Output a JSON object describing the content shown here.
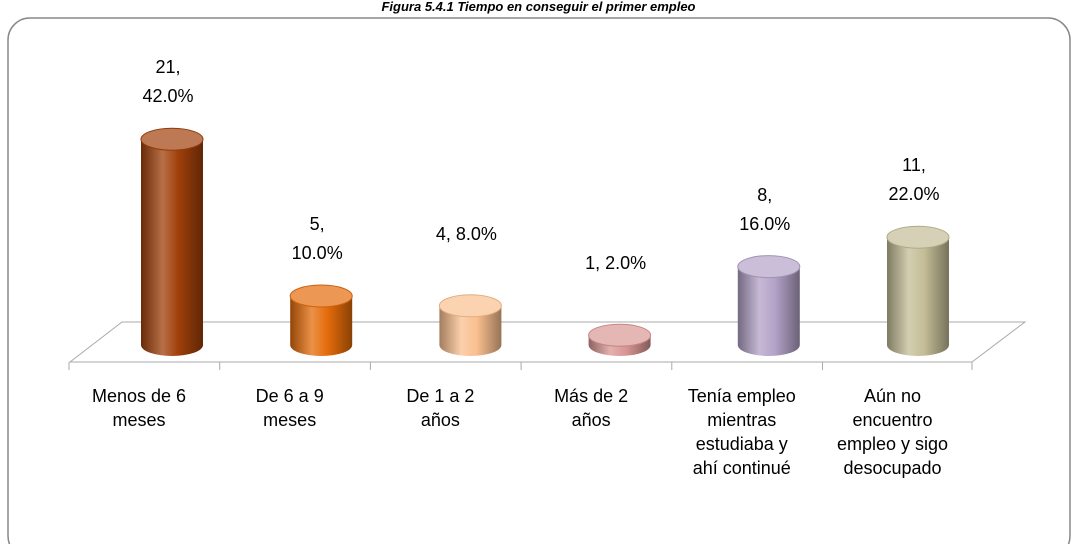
{
  "chart_data": {
    "type": "bar3d",
    "title": "Figura 5.4.1 Tiempo en conseguir el primer empleo",
    "categories": [
      "Menos de 6 meses",
      "De 6 a 9 meses",
      "De 1 a 2 años",
      "Más de 2 años",
      "Tenía empleo mientras estudiaba y ahí continué",
      "Aún no encuentro empleo y sigo desocupado"
    ],
    "values": [
      21,
      5,
      4,
      1,
      8,
      11
    ],
    "value_labels": [
      "21, 42.0%",
      "5, 10.0%",
      "4, 8.0%",
      "1, 2.0%",
      "8, 16.0%",
      "11, 22.0%"
    ],
    "colors": [
      "#a0400a",
      "#e46c0a",
      "#fac090",
      "#d99694",
      "#b3a2c7",
      "#c4bd97"
    ]
  }
}
